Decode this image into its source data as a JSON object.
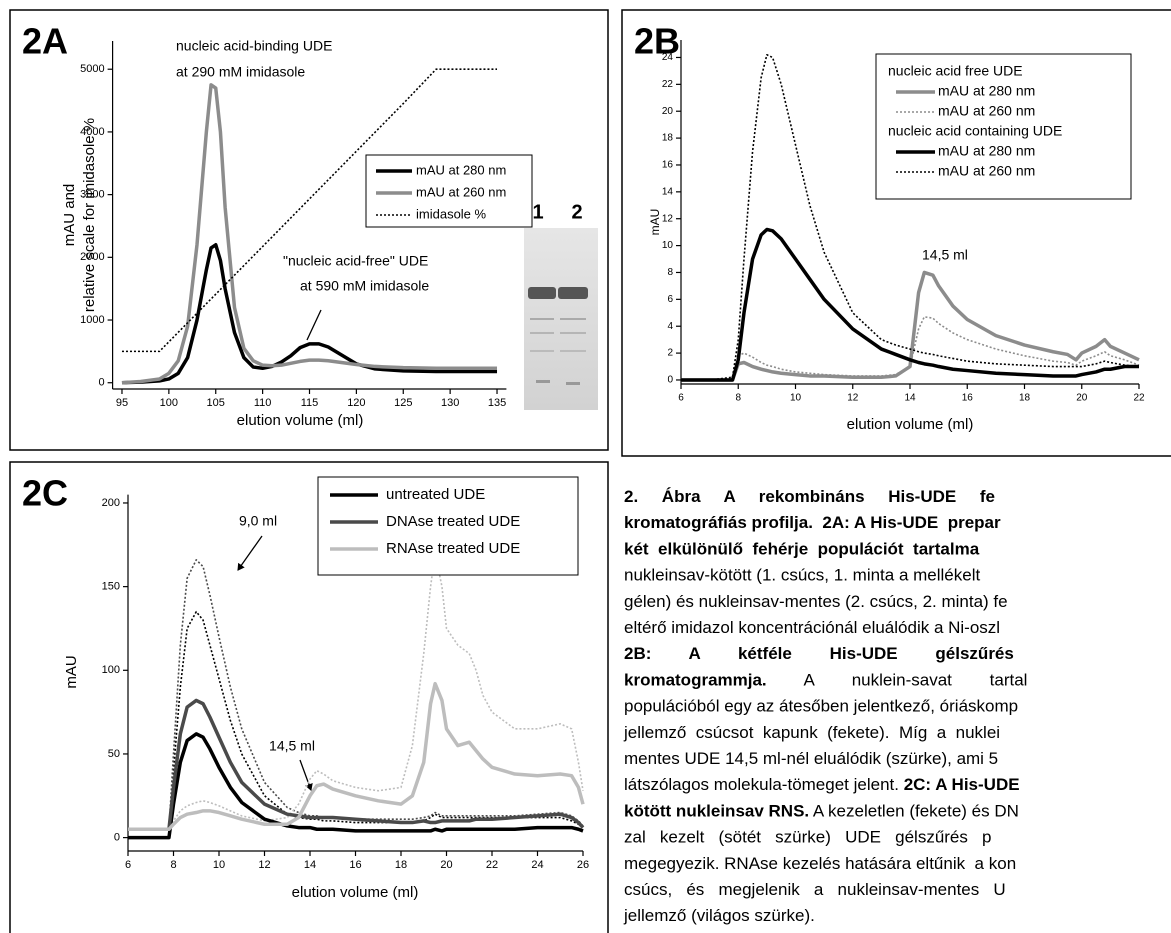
{
  "chart_data": [
    {
      "type": "line",
      "panel_label": "2A",
      "x_label": "elution volume (ml)",
      "y_label": [
        "mAU and",
        "relative scale for imidasole %"
      ],
      "annotations": [
        "nucleic acid-binding UDE",
        "at 290 mM imidasole",
        "\"nucleic acid-free\" UDE",
        "at 590 mM imidasole"
      ],
      "inset_labels": [
        "1",
        "2"
      ],
      "xlim": [
        94,
        136
      ],
      "xticks": [
        95,
        100,
        105,
        110,
        115,
        120,
        125,
        130,
        135
      ],
      "ylim": [
        -100,
        5450
      ],
      "yticks": [
        0,
        1000,
        2000,
        3000,
        4000,
        5000
      ],
      "legend": "upper right",
      "x": [
        95,
        97,
        99,
        100,
        101,
        102,
        103,
        104,
        104.5,
        105,
        105.5,
        106,
        107,
        108,
        109,
        110,
        111,
        112,
        113,
        114,
        115,
        116,
        117,
        118,
        119,
        120,
        122,
        125,
        128.5,
        130,
        135
      ],
      "series": [
        {
          "name": "mAU at 280 nm",
          "color": "#000000",
          "dash": "solid",
          "values": [
            0,
            10,
            30,
            60,
            150,
            400,
            1000,
            1800,
            2150,
            2200,
            1950,
            1500,
            800,
            400,
            250,
            230,
            260,
            330,
            430,
            560,
            620,
            620,
            570,
            480,
            390,
            300,
            220,
            190,
            180,
            180,
            180
          ]
        },
        {
          "name": "mAU at 260 nm",
          "color": "#8c8c8c",
          "dash": "solid",
          "values": [
            0,
            20,
            60,
            150,
            350,
            900,
            2200,
            4000,
            4750,
            4700,
            4000,
            2800,
            1200,
            550,
            350,
            280,
            270,
            280,
            310,
            340,
            360,
            360,
            350,
            330,
            310,
            290,
            260,
            240,
            230,
            230,
            230
          ]
        },
        {
          "name": "imidasole %",
          "color": "#000000",
          "dash": "dotted",
          "values": [
            500,
            500,
            500,
            652,
            804,
            956,
            1108,
            1260,
            1336,
            1412,
            1488,
            1564,
            1716,
            1868,
            2020,
            2172,
            2324,
            2476,
            2628,
            2780,
            2932,
            3084,
            3236,
            3388,
            3540,
            3692,
            3996,
            4452,
            5000,
            5000,
            5000
          ]
        }
      ]
    },
    {
      "type": "line",
      "panel_label": "2B",
      "x_label": "elution volume (ml)",
      "y_label": [
        "mAU"
      ],
      "annotations": [
        "14,5 ml"
      ],
      "xlim": [
        6,
        22
      ],
      "xticks": [
        6,
        8,
        10,
        12,
        14,
        16,
        18,
        20,
        22
      ],
      "ylim": [
        -0.3,
        25.3
      ],
      "yticks": [
        0,
        2,
        4,
        6,
        8,
        10,
        12,
        14,
        16,
        18,
        20,
        22,
        24
      ],
      "legend": "upper right",
      "legend_groups": [
        "nucleic acid free UDE",
        "nucleic acid containing UDE"
      ],
      "x": [
        6,
        7,
        7.8,
        8,
        8.2,
        8.5,
        8.8,
        9,
        9.2,
        9.5,
        10,
        10.5,
        11,
        12,
        13,
        13.5,
        14,
        14.3,
        14.5,
        14.8,
        15,
        15.5,
        16,
        17,
        18,
        19,
        19.5,
        19.8,
        20,
        20.5,
        20.8,
        21,
        21.5,
        22
      ],
      "series": [
        {
          "name": "mAU at 280 nm",
          "legend_group": 0,
          "color": "#8c8c8c",
          "dash": "solid",
          "values": [
            0,
            0,
            0,
            1.2,
            1.3,
            1,
            0.8,
            0.7,
            0.6,
            0.5,
            0.4,
            0.3,
            0.3,
            0.2,
            0.2,
            0.3,
            1,
            6.5,
            8,
            7.8,
            7,
            5.5,
            4.5,
            3.3,
            2.6,
            2.1,
            1.9,
            1.5,
            2,
            2.5,
            3,
            2.5,
            2,
            1.5
          ]
        },
        {
          "name": "mAU at 260 nm",
          "legend_group": 0,
          "color": "#8c8c8c",
          "dash": "dotted",
          "values": [
            0,
            0,
            0,
            1.8,
            2,
            1.7,
            1.3,
            1.1,
            1,
            0.8,
            0.6,
            0.5,
            0.4,
            0.3,
            0.3,
            0.4,
            1,
            3.8,
            4.7,
            4.6,
            4.2,
            3.5,
            3,
            2.3,
            1.8,
            1.4,
            1.3,
            1.1,
            1.4,
            1.8,
            2.1,
            1.8,
            1.5,
            1.1
          ]
        },
        {
          "name": "mAU at 280 nm",
          "legend_group": 1,
          "color": "#000000",
          "dash": "solid",
          "values": [
            0,
            0,
            0,
            1.5,
            5,
            9,
            10.8,
            11.2,
            11.1,
            10.5,
            9,
            7.5,
            6,
            3.8,
            2.3,
            1.9,
            1.5,
            1.3,
            1.2,
            1.1,
            1,
            0.8,
            0.7,
            0.5,
            0.4,
            0.3,
            0.3,
            0.3,
            0.4,
            0.6,
            0.8,
            0.8,
            1,
            1
          ]
        },
        {
          "name": "mAU at 260 nm",
          "legend_group": 1,
          "color": "#000000",
          "dash": "dotted",
          "values": [
            0,
            0,
            0.2,
            3,
            9,
            17,
            22.5,
            24.2,
            24,
            22,
            17.5,
            13,
            9.5,
            5,
            3,
            2.6,
            2.3,
            2.1,
            2,
            1.9,
            1.8,
            1.6,
            1.4,
            1.2,
            1.1,
            1,
            1,
            1,
            1,
            1.2,
            1.4,
            1.3,
            1.1,
            1
          ]
        }
      ]
    },
    {
      "type": "line",
      "panel_label": "2C",
      "x_label": "elution volume  (ml)",
      "y_label": [
        "mAU"
      ],
      "annotations": [
        "9,0 ml",
        "14,5 ml"
      ],
      "xlim": [
        6,
        26
      ],
      "xticks": [
        6,
        8,
        10,
        12,
        14,
        16,
        18,
        20,
        22,
        24,
        26
      ],
      "ylim": [
        -8,
        205
      ],
      "yticks": [
        0,
        50,
        100,
        150,
        200
      ],
      "legend": "upper right",
      "x": [
        6,
        7.8,
        8,
        8.3,
        8.6,
        9,
        9.3,
        9.6,
        10,
        10.5,
        11,
        12,
        13,
        13.5,
        14,
        14.3,
        14.6,
        15,
        16,
        17,
        18,
        18.5,
        19,
        19.3,
        19.5,
        19.8,
        20,
        20.5,
        21,
        21.3,
        21.6,
        22,
        23,
        24,
        25,
        25.5,
        25.8,
        26
      ],
      "series": [
        {
          "color": "#000000",
          "dash": "dotted",
          "values": [
            0,
            0,
            40,
            90,
            125,
            135,
            130,
            115,
            95,
            70,
            50,
            25,
            14,
            12,
            11,
            11,
            10,
            10,
            9,
            9,
            9,
            9,
            10,
            12,
            14,
            12,
            12,
            12,
            12,
            12,
            12,
            12,
            12,
            12,
            12,
            10,
            8,
            6
          ]
        },
        {
          "color": "#4a4a4a",
          "dash": "dotted",
          "values": [
            5,
            5,
            50,
            115,
            155,
            166,
            162,
            145,
            120,
            90,
            65,
            33,
            18,
            15,
            13,
            13,
            12,
            12,
            11,
            11,
            11,
            11,
            12,
            13,
            15,
            13,
            13,
            13,
            13,
            13,
            13,
            13,
            13,
            14,
            15,
            13,
            10,
            7
          ]
        },
        {
          "color": "#bdbdbd",
          "dash": "dotted",
          "values": [
            5,
            5,
            10,
            16,
            19,
            21,
            22,
            21,
            19,
            16,
            13,
            10,
            12,
            20,
            35,
            40,
            38,
            34,
            30,
            28,
            30,
            55,
            110,
            150,
            170,
            150,
            125,
            115,
            110,
            100,
            85,
            75,
            65,
            65,
            68,
            65,
            45,
            28
          ]
        },
        {
          "name": "untreated UDE",
          "color": "#000000",
          "dash": "solid",
          "values": [
            0,
            0,
            20,
            45,
            58,
            62,
            60,
            53,
            42,
            30,
            21,
            11,
            7,
            6,
            6,
            5,
            5,
            5,
            4,
            4,
            4,
            4,
            4,
            4,
            5,
            4,
            5,
            5,
            5,
            5,
            5,
            5,
            5,
            6,
            6,
            6,
            5,
            4
          ]
        },
        {
          "name": "DNAse treated UDE",
          "color": "#4a4a4a",
          "dash": "solid",
          "values": [
            5,
            5,
            30,
            62,
            78,
            82,
            80,
            72,
            60,
            45,
            33,
            20,
            14,
            13,
            12,
            12,
            12,
            12,
            11,
            10,
            9,
            9,
            10,
            9,
            9,
            10,
            10,
            10,
            10,
            11,
            11,
            11,
            12,
            13,
            14,
            12,
            9,
            6
          ]
        },
        {
          "name": "RNAse treated UDE",
          "color": "#bdbdbd",
          "dash": "solid",
          "values": [
            5,
            5,
            8,
            12,
            14,
            15,
            16,
            16,
            15,
            13,
            11,
            8,
            8,
            12,
            25,
            31,
            32,
            29,
            25,
            22,
            20,
            25,
            45,
            80,
            92,
            82,
            65,
            55,
            57,
            52,
            47,
            42,
            38,
            37,
            38,
            37,
            30,
            20
          ]
        }
      ]
    }
  ],
  "caption": {
    "lines": [
      [
        {
          "text": "2.     Ábra     A     rekombináns     His-UDE     fe",
          "bold": true
        }
      ],
      [
        {
          "text": "kromatográfiás profilja.  2A: A His-UDE  prepar",
          "bold": true
        }
      ],
      [
        {
          "text": "két  elkülönülő  fehérje  populációt  tartalma",
          "bold": true
        }
      ],
      [
        {
          "text": "nukleinsav-kötött (1. csúcs, 1. minta a mellékelt",
          "bold": false
        }
      ],
      [
        {
          "text": "gélen) és nukleinsav-mentes (2. csúcs, 2. minta) fe",
          "bold": false
        }
      ],
      [
        {
          "text": "eltérő imidazol koncentrációnál eluálódik a Ni-oszl",
          "bold": false
        }
      ],
      [
        {
          "text": "2B:        A        kétféle        His-UDE        gélszűrés",
          "bold": true
        }
      ],
      [
        {
          "text": "kromatogrammja.",
          "bold": true
        },
        {
          "text": "        A        nuklein-savat        tartal",
          "bold": false
        }
      ],
      [
        {
          "text": "populációból egy az átesőben jelentkező, óriáskomp",
          "bold": false
        }
      ],
      [
        {
          "text": "jellemző  csúcsot  kapunk  (fekete).  Míg  a  nuklei",
          "bold": false
        }
      ],
      [
        {
          "text": "mentes UDE 14,5 ml-nél eluálódik (szürke), ami 5",
          "bold": false
        }
      ],
      [
        {
          "text": "látszólagos molekula-tömeget jelent. ",
          "bold": false
        },
        {
          "text": "2C: A His-UDE",
          "bold": true
        }
      ],
      [
        {
          "text": "kötött nukleinsav RNS.",
          "bold": true
        },
        {
          "text": " A kezeletlen (fekete) és DN",
          "bold": false
        }
      ],
      [
        {
          "text": "zal   kezelt   (sötét   szürke)   UDE   gélszűrés   p",
          "bold": false
        }
      ],
      [
        {
          "text": "megegyezik. RNAse kezelés hatására eltűnik  a kon",
          "bold": false
        }
      ],
      [
        {
          "text": "csúcs,   és   megjelenik   a   nukleinsav-mentes   U",
          "bold": false
        }
      ],
      [
        {
          "text": "jellemző (világos szürke).",
          "bold": false
        }
      ]
    ]
  }
}
